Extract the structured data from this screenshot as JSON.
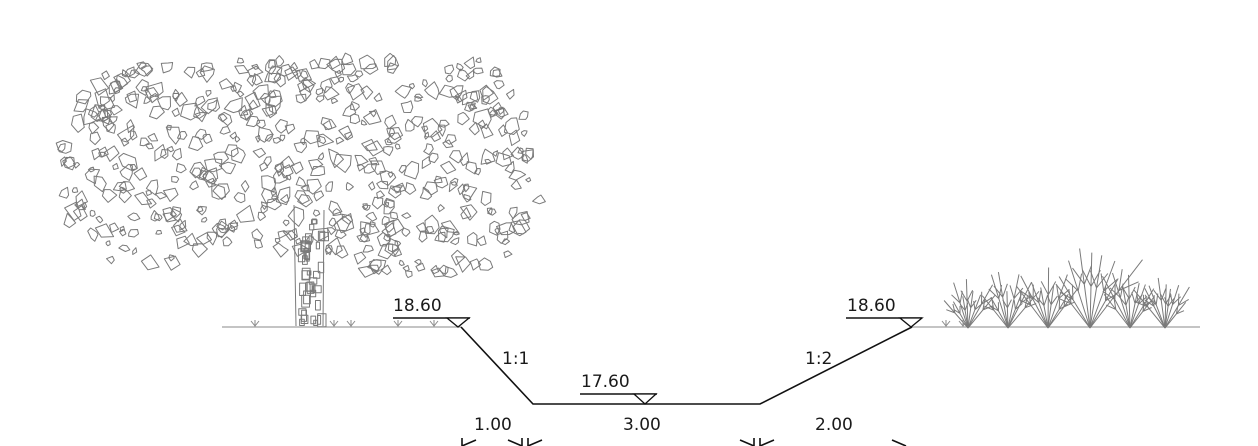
{
  "section": {
    "left_top_elevation": "18.60",
    "right_top_elevation": "18.60",
    "bottom_elevation": "17.60",
    "left_slope": "1:1",
    "right_slope": "1:2",
    "dim_left": "1.00",
    "dim_bottom": "3.00",
    "dim_right": "2.00"
  },
  "icons": {
    "tree": "tree-icon",
    "shrub": "shrub-icon",
    "grass": "grass-icon",
    "elevation_marker": "elevation-triangle-icon"
  },
  "colors": {
    "line": "#111111",
    "vegetation": "#7a7a7a"
  }
}
